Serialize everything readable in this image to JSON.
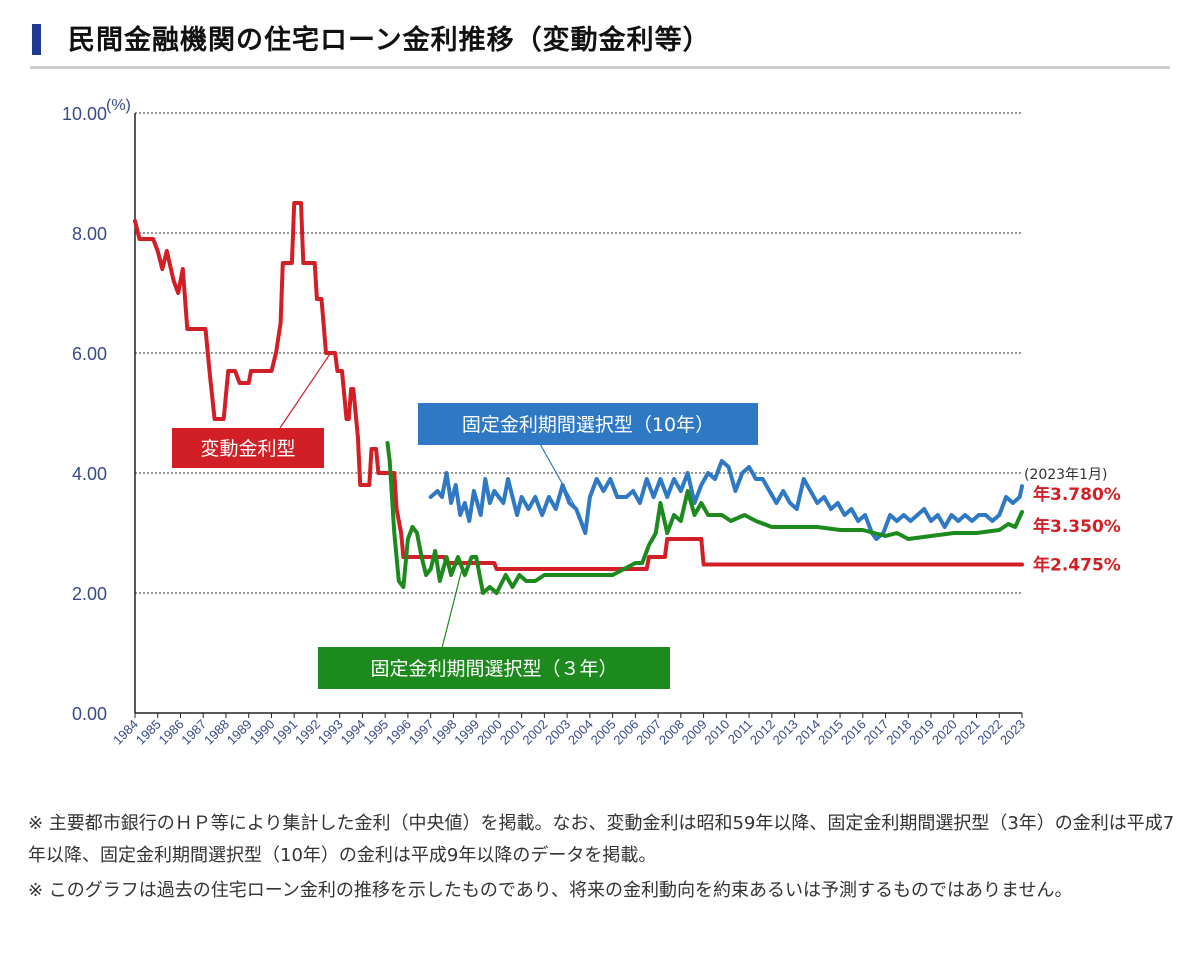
{
  "page_title": "民間金融機関の住宅ローン金利推移（変動金利等）",
  "notes": [
    "※ 主要都市銀行のＨＰ等により集計した金利（中央値）を掲載。なお、変動金利は昭和59年以降、固定金利期間選択型（3年）の金利は平成7年以降、固定金利期間選択型（10年）の金利は平成9年以降のデータを掲載。",
    "※ このグラフは過去の住宅ローン金利の推移を示したものであり、将来の金利動向を約束あるいは予測するものではありません。"
  ],
  "colors": {
    "variable": "#d21f26",
    "fixed10": "#2f78c4",
    "fixed3": "#1d8a1d",
    "axis": "#3a4a8a"
  },
  "chart_data": {
    "type": "line",
    "title": "民間金融機関の住宅ローン金利推移（変動金利等）",
    "ylabel": "(%)",
    "xlabel": "",
    "ylim": [
      0,
      10
    ],
    "xlim": [
      1984,
      2023
    ],
    "yticks": [
      "0.00",
      "2.00",
      "4.00",
      "6.00",
      "8.00",
      "10.00"
    ],
    "xticks": [
      "1984",
      "1985",
      "1986",
      "1987",
      "1988",
      "1989",
      "1990",
      "1991",
      "1992",
      "1993",
      "1994",
      "1995",
      "1996",
      "1997",
      "1998",
      "1999",
      "2000",
      "2001",
      "2002",
      "2003",
      "2004",
      "2005",
      "2006",
      "2007",
      "2008",
      "2009",
      "2010",
      "2011",
      "2012",
      "2013",
      "2014",
      "2015",
      "2016",
      "2017",
      "2018",
      "2019",
      "2020",
      "2021",
      "2022",
      "2023"
    ],
    "grid": true,
    "series": [
      {
        "name": "変動金利型",
        "key": "variable",
        "points": [
          [
            1984.0,
            8.2
          ],
          [
            1984.2,
            7.9
          ],
          [
            1984.8,
            7.9
          ],
          [
            1985.0,
            7.7
          ],
          [
            1985.2,
            7.4
          ],
          [
            1985.4,
            7.7
          ],
          [
            1985.7,
            7.2
          ],
          [
            1985.9,
            7.0
          ],
          [
            1986.1,
            7.4
          ],
          [
            1986.3,
            6.4
          ],
          [
            1987.1,
            6.4
          ],
          [
            1987.3,
            5.6
          ],
          [
            1987.5,
            4.9
          ],
          [
            1987.9,
            4.9
          ],
          [
            1988.1,
            5.7
          ],
          [
            1988.4,
            5.7
          ],
          [
            1988.6,
            5.5
          ],
          [
            1989.0,
            5.5
          ],
          [
            1989.1,
            5.7
          ],
          [
            1990.0,
            5.7
          ],
          [
            1990.2,
            6.0
          ],
          [
            1990.4,
            6.5
          ],
          [
            1990.5,
            7.5
          ],
          [
            1990.9,
            7.5
          ],
          [
            1991.0,
            8.5
          ],
          [
            1991.3,
            8.5
          ],
          [
            1991.4,
            7.5
          ],
          [
            1991.9,
            7.5
          ],
          [
            1992.0,
            6.9
          ],
          [
            1992.2,
            6.9
          ],
          [
            1992.4,
            6.0
          ],
          [
            1992.8,
            6.0
          ],
          [
            1992.9,
            5.7
          ],
          [
            1993.1,
            5.7
          ],
          [
            1993.3,
            4.9
          ],
          [
            1993.4,
            4.9
          ],
          [
            1993.5,
            5.4
          ],
          [
            1993.6,
            5.4
          ],
          [
            1993.8,
            4.6
          ],
          [
            1993.9,
            3.8
          ],
          [
            1994.3,
            3.8
          ],
          [
            1994.4,
            4.4
          ],
          [
            1994.6,
            4.4
          ],
          [
            1994.7,
            4.0
          ],
          [
            1995.4,
            4.0
          ],
          [
            1995.5,
            3.4
          ],
          [
            1995.7,
            3.0
          ],
          [
            1995.8,
            2.6
          ],
          [
            1997.6,
            2.6
          ],
          [
            1997.7,
            2.5
          ],
          [
            1999.8,
            2.5
          ],
          [
            1999.9,
            2.4
          ],
          [
            2006.5,
            2.4
          ],
          [
            2006.6,
            2.6
          ],
          [
            2007.3,
            2.6
          ],
          [
            2007.4,
            2.9
          ],
          [
            2008.9,
            2.9
          ],
          [
            2009.0,
            2.475
          ],
          [
            2023.0,
            2.475
          ]
        ]
      },
      {
        "name": "固定金利期間選択型（10年）",
        "key": "fixed10",
        "points": [
          [
            1997.0,
            3.6
          ],
          [
            1997.3,
            3.7
          ],
          [
            1997.5,
            3.6
          ],
          [
            1997.7,
            4.0
          ],
          [
            1997.9,
            3.5
          ],
          [
            1998.1,
            3.8
          ],
          [
            1998.3,
            3.3
          ],
          [
            1998.5,
            3.5
          ],
          [
            1998.7,
            3.2
          ],
          [
            1998.9,
            3.7
          ],
          [
            1999.2,
            3.3
          ],
          [
            1999.4,
            3.9
          ],
          [
            1999.6,
            3.5
          ],
          [
            1999.8,
            3.7
          ],
          [
            2000.2,
            3.5
          ],
          [
            2000.4,
            3.9
          ],
          [
            2000.6,
            3.6
          ],
          [
            2000.8,
            3.3
          ],
          [
            2001.0,
            3.6
          ],
          [
            2001.3,
            3.4
          ],
          [
            2001.6,
            3.6
          ],
          [
            2001.9,
            3.3
          ],
          [
            2002.2,
            3.6
          ],
          [
            2002.5,
            3.4
          ],
          [
            2002.8,
            3.8
          ],
          [
            2003.1,
            3.5
          ],
          [
            2003.4,
            3.4
          ],
          [
            2003.6,
            3.2
          ],
          [
            2003.8,
            3.0
          ],
          [
            2004.0,
            3.6
          ],
          [
            2004.3,
            3.9
          ],
          [
            2004.6,
            3.7
          ],
          [
            2004.9,
            3.9
          ],
          [
            2005.2,
            3.6
          ],
          [
            2005.6,
            3.6
          ],
          [
            2005.9,
            3.7
          ],
          [
            2006.2,
            3.5
          ],
          [
            2006.5,
            3.9
          ],
          [
            2006.8,
            3.6
          ],
          [
            2007.1,
            3.9
          ],
          [
            2007.4,
            3.6
          ],
          [
            2007.7,
            3.9
          ],
          [
            2008.0,
            3.7
          ],
          [
            2008.3,
            4.0
          ],
          [
            2008.6,
            3.5
          ],
          [
            2008.9,
            3.8
          ],
          [
            2009.2,
            4.0
          ],
          [
            2009.5,
            3.9
          ],
          [
            2009.8,
            4.2
          ],
          [
            2010.1,
            4.1
          ],
          [
            2010.4,
            3.7
          ],
          [
            2010.7,
            4.0
          ],
          [
            2011.0,
            4.1
          ],
          [
            2011.3,
            3.9
          ],
          [
            2011.6,
            3.9
          ],
          [
            2011.9,
            3.7
          ],
          [
            2012.2,
            3.5
          ],
          [
            2012.5,
            3.7
          ],
          [
            2012.8,
            3.5
          ],
          [
            2013.1,
            3.4
          ],
          [
            2013.4,
            3.9
          ],
          [
            2013.7,
            3.7
          ],
          [
            2014.0,
            3.5
          ],
          [
            2014.3,
            3.6
          ],
          [
            2014.6,
            3.4
          ],
          [
            2014.9,
            3.5
          ],
          [
            2015.2,
            3.3
          ],
          [
            2015.5,
            3.4
          ],
          [
            2015.8,
            3.2
          ],
          [
            2016.1,
            3.3
          ],
          [
            2016.4,
            3.0
          ],
          [
            2016.6,
            2.9
          ],
          [
            2016.9,
            3.0
          ],
          [
            2017.2,
            3.3
          ],
          [
            2017.5,
            3.2
          ],
          [
            2017.8,
            3.3
          ],
          [
            2018.1,
            3.2
          ],
          [
            2018.4,
            3.3
          ],
          [
            2018.7,
            3.4
          ],
          [
            2019.0,
            3.2
          ],
          [
            2019.3,
            3.3
          ],
          [
            2019.6,
            3.1
          ],
          [
            2019.9,
            3.3
          ],
          [
            2020.2,
            3.2
          ],
          [
            2020.5,
            3.3
          ],
          [
            2020.8,
            3.2
          ],
          [
            2021.1,
            3.3
          ],
          [
            2021.4,
            3.3
          ],
          [
            2021.7,
            3.2
          ],
          [
            2022.0,
            3.3
          ],
          [
            2022.3,
            3.6
          ],
          [
            2022.6,
            3.5
          ],
          [
            2022.9,
            3.6
          ],
          [
            2023.0,
            3.78
          ]
        ]
      },
      {
        "name": "固定金利期間選択型（3年）",
        "key": "fixed3",
        "points": [
          [
            1995.1,
            4.5
          ],
          [
            1995.2,
            4.2
          ],
          [
            1995.4,
            3.0
          ],
          [
            1995.6,
            2.2
          ],
          [
            1995.8,
            2.1
          ],
          [
            1996.0,
            2.9
          ],
          [
            1996.2,
            3.1
          ],
          [
            1996.4,
            3.0
          ],
          [
            1996.6,
            2.6
          ],
          [
            1996.8,
            2.3
          ],
          [
            1997.0,
            2.4
          ],
          [
            1997.2,
            2.7
          ],
          [
            1997.4,
            2.2
          ],
          [
            1997.7,
            2.6
          ],
          [
            1997.9,
            2.3
          ],
          [
            1998.2,
            2.6
          ],
          [
            1998.5,
            2.3
          ],
          [
            1998.8,
            2.6
          ],
          [
            1999.0,
            2.6
          ],
          [
            1999.3,
            2.0
          ],
          [
            1999.6,
            2.1
          ],
          [
            1999.9,
            2.0
          ],
          [
            2000.3,
            2.3
          ],
          [
            2000.6,
            2.1
          ],
          [
            2000.9,
            2.3
          ],
          [
            2001.2,
            2.2
          ],
          [
            2001.6,
            2.2
          ],
          [
            2002.0,
            2.3
          ],
          [
            2003.0,
            2.3
          ],
          [
            2004.0,
            2.3
          ],
          [
            2005.0,
            2.3
          ],
          [
            2005.5,
            2.4
          ],
          [
            2006.0,
            2.5
          ],
          [
            2006.3,
            2.5
          ],
          [
            2006.6,
            2.8
          ],
          [
            2006.9,
            3.0
          ],
          [
            2007.1,
            3.5
          ],
          [
            2007.4,
            3.0
          ],
          [
            2007.7,
            3.3
          ],
          [
            2008.0,
            3.2
          ],
          [
            2008.3,
            3.7
          ],
          [
            2008.6,
            3.3
          ],
          [
            2008.9,
            3.5
          ],
          [
            2009.2,
            3.3
          ],
          [
            2009.8,
            3.3
          ],
          [
            2010.2,
            3.2
          ],
          [
            2010.8,
            3.3
          ],
          [
            2011.3,
            3.2
          ],
          [
            2012.0,
            3.1
          ],
          [
            2013.0,
            3.1
          ],
          [
            2014.0,
            3.1
          ],
          [
            2015.0,
            3.05
          ],
          [
            2016.0,
            3.05
          ],
          [
            2016.5,
            3.0
          ],
          [
            2017.0,
            2.95
          ],
          [
            2017.5,
            3.0
          ],
          [
            2018.0,
            2.9
          ],
          [
            2019.0,
            2.95
          ],
          [
            2020.0,
            3.0
          ],
          [
            2021.0,
            3.0
          ],
          [
            2022.0,
            3.05
          ],
          [
            2022.4,
            3.15
          ],
          [
            2022.7,
            3.1
          ],
          [
            2023.0,
            3.35
          ]
        ]
      }
    ],
    "series_labels": {
      "variable": "変動金利型",
      "fixed10": "固定金利期間選択型（10年）",
      "fixed3": "固定金利期間選択型（３年）"
    },
    "end_annotation": "(2023年1月)",
    "end_values": [
      {
        "key": "fixed10",
        "label": "年3.780%"
      },
      {
        "key": "fixed3",
        "label": "年3.350%"
      },
      {
        "key": "variable",
        "label": "年2.475%"
      }
    ]
  }
}
